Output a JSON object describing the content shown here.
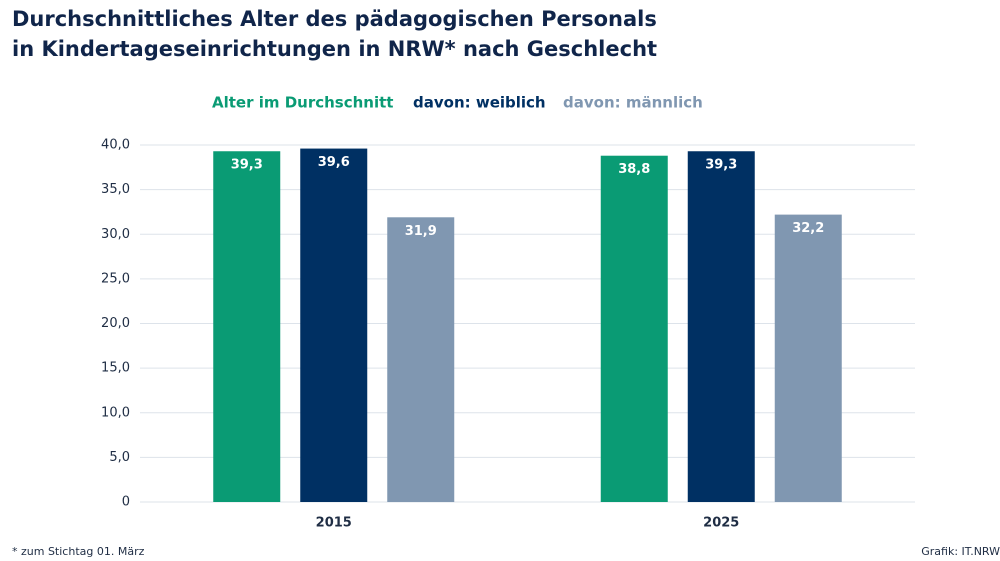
{
  "chart_data": {
    "type": "bar",
    "title": [
      "Durchschnittliches Alter des pädagogischen Personals",
      "in Kindertageseinrichtungen in NRW* nach Geschlecht"
    ],
    "categories": [
      "2015",
      "2025"
    ],
    "series": [
      {
        "name": "Alter im Durchschnitt",
        "color": "#0a9b74",
        "values": [
          39.3,
          38.8
        ],
        "value_labels": [
          "39,3",
          "38,8"
        ]
      },
      {
        "name": "davon: weiblich",
        "color": "#003063",
        "values": [
          39.6,
          39.3
        ],
        "value_labels": [
          "39,6",
          "39,3"
        ]
      },
      {
        "name": "davon: männlich",
        "color": "#8097b1",
        "values": [
          31.9,
          32.2
        ],
        "value_labels": [
          "31,9",
          "32,2"
        ]
      }
    ],
    "ylim": [
      0,
      40
    ],
    "yticks": [
      0,
      {
        "value": 5,
        "label": "5,0"
      },
      {
        "value": 10,
        "label": "10,0"
      },
      {
        "value": 15,
        "label": "15,0"
      },
      {
        "value": 20,
        "label": "20,0"
      },
      {
        "value": 25,
        "label": "25,0"
      },
      {
        "value": 30,
        "label": "30,0"
      },
      {
        "value": 35,
        "label": "35,0"
      },
      {
        "value": 40,
        "label": "40,0"
      }
    ],
    "grid": true,
    "legend": "top",
    "footnote": "*  zum Stichtag 01. März",
    "source": "Grafik: IT.NRW"
  }
}
